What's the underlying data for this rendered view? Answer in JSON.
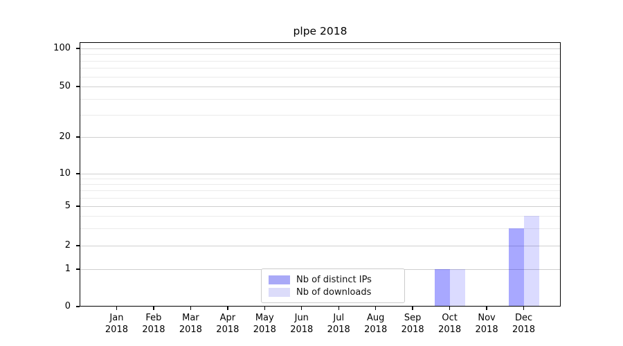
{
  "chart_data": {
    "type": "bar",
    "title": "plpe 2018",
    "categories": [
      "Jan 2018",
      "Feb 2018",
      "Mar 2018",
      "Apr 2018",
      "May 2018",
      "Jun 2018",
      "Jul 2018",
      "Aug 2018",
      "Sep 2018",
      "Oct 2018",
      "Nov 2018",
      "Dec 2018"
    ],
    "x_tick_line1": [
      "Jan",
      "Feb",
      "Mar",
      "Apr",
      "May",
      "Jun",
      "Jul",
      "Aug",
      "Sep",
      "Oct",
      "Nov",
      "Dec"
    ],
    "x_tick_line2": "2018",
    "series": [
      {
        "name": "Nb of distinct IPs",
        "color_hex": "#a9a9f7",
        "fill_rgba": "rgba(0,0,255,0.34)",
        "values": [
          0,
          0,
          0,
          0,
          0,
          0,
          0,
          0,
          0,
          1,
          0,
          3
        ]
      },
      {
        "name": "Nb of downloads",
        "color_hex": "#dcdcfa",
        "fill_rgba": "rgba(0,0,255,0.14)",
        "values": [
          0,
          0,
          0,
          0,
          0,
          0,
          0,
          0,
          0,
          1,
          0,
          4
        ]
      }
    ],
    "y_axis": {
      "scale": "symlog",
      "ylim": [
        0,
        100
      ],
      "ticks": [
        0,
        1,
        2,
        5,
        10,
        20,
        50,
        100
      ],
      "tick_labels": [
        "0",
        "1",
        "2",
        "5",
        "10",
        "20",
        "50",
        "100"
      ],
      "minor_ticks": [
        3,
        4,
        6,
        7,
        8,
        9,
        30,
        40,
        60,
        70,
        80,
        90
      ]
    },
    "legend": {
      "position": "lower-center-inside",
      "items": [
        {
          "label": "Nb of distinct IPs",
          "swatch_hex": "#a9a9f7"
        },
        {
          "label": "Nb of downloads",
          "swatch_hex": "#dcdcfa"
        }
      ]
    },
    "grid": true,
    "colors": {
      "grid_major": "#cfcfcf",
      "grid_minor": "#ebebeb",
      "axis": "#000000",
      "background": "#ffffff"
    }
  }
}
